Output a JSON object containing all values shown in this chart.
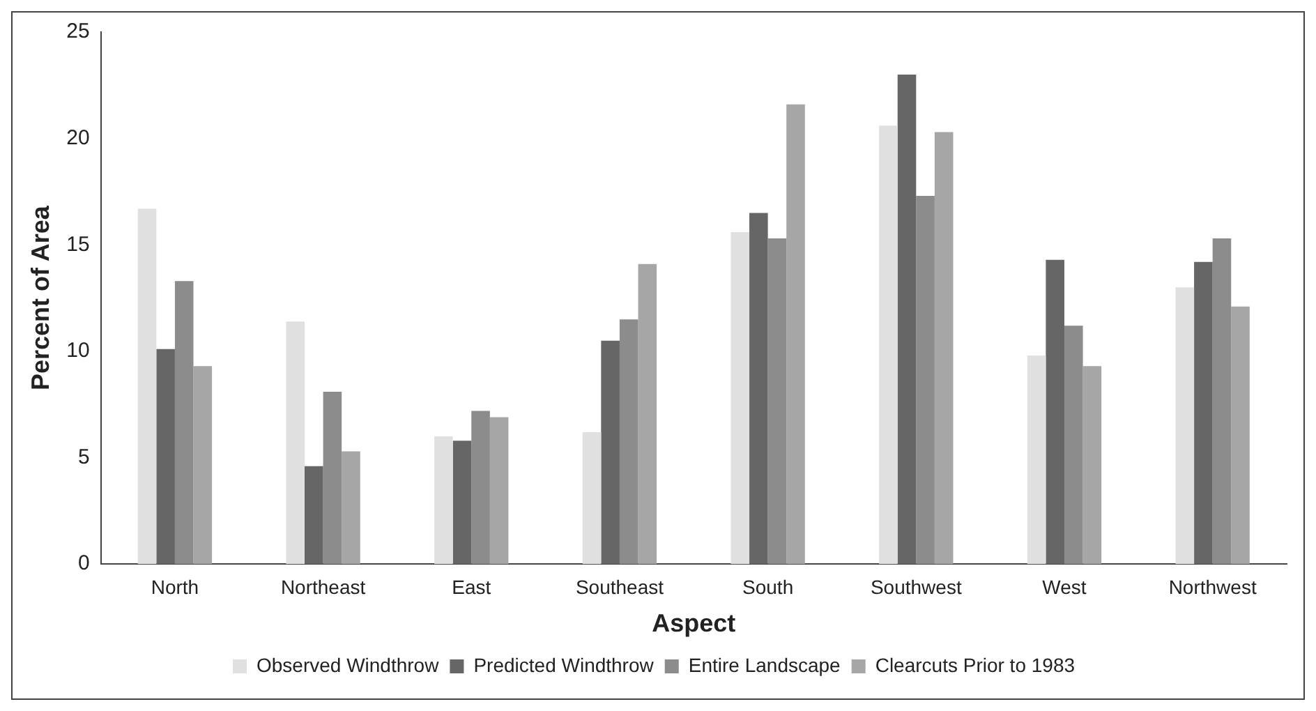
{
  "chart_data": {
    "type": "bar",
    "xlabel": "Aspect",
    "ylabel": "Percent of Area",
    "categories": [
      "North",
      "Northeast",
      "East",
      "Southeast",
      "South",
      "Southwest",
      "West",
      "Northwest"
    ],
    "series": [
      {
        "name": "Observed Windthrow",
        "color": "#e0e0e0",
        "values": [
          16.7,
          11.4,
          6.0,
          6.2,
          15.6,
          20.6,
          9.8,
          13.0
        ]
      },
      {
        "name": "Predicted Windthrow",
        "color": "#666666",
        "values": [
          10.1,
          4.6,
          5.8,
          10.5,
          16.5,
          23.0,
          14.3,
          14.2
        ]
      },
      {
        "name": "Entire Landscape",
        "color": "#8c8c8c",
        "values": [
          13.3,
          8.1,
          7.2,
          11.5,
          15.3,
          17.3,
          11.2,
          15.3
        ]
      },
      {
        "name": "Clearcuts Prior to 1983",
        "color": "#a6a6a6",
        "values": [
          9.3,
          5.3,
          6.9,
          14.1,
          21.6,
          20.3,
          9.3,
          12.1
        ]
      }
    ],
    "ylim": [
      0,
      25
    ],
    "yticks": [
      0,
      5,
      10,
      15,
      20,
      25
    ],
    "grid": false,
    "legend": "bottom"
  }
}
